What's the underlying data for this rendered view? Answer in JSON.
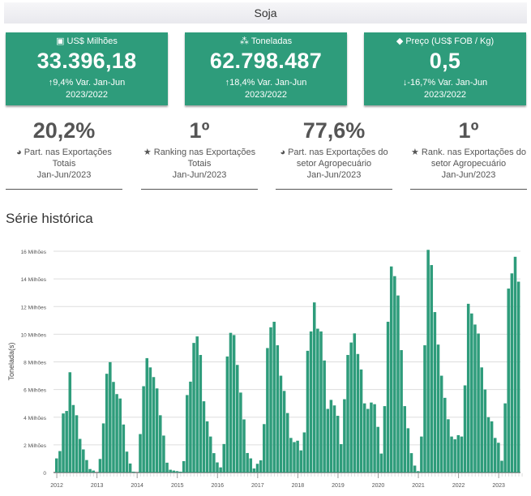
{
  "header": {
    "title": "Soja"
  },
  "cards": [
    {
      "icon": "money-bill-icon",
      "glyph": "▣",
      "label": "US$ Milhões",
      "value": "33.396,18",
      "arrow": "↑",
      "variation": "9,4% Var. Jan-Jun",
      "period": "2023/2022"
    },
    {
      "icon": "cubes-icon",
      "glyph": "⁂",
      "label": "Toneladas",
      "value": "62.798.487",
      "arrow": "↑",
      "variation": "18,4% Var. Jan-Jun",
      "period": "2023/2022"
    },
    {
      "icon": "tags-icon",
      "glyph": "◆",
      "label": "Preço (US$ FOB / Kg)",
      "value": "0,5",
      "arrow": "↓",
      "variation": "-16,7% Var. Jan-Jun",
      "period": "2023/2022"
    }
  ],
  "stats": [
    {
      "icon": "pie-chart-icon",
      "glyph": "◕",
      "value": "20,2%",
      "line1": "Part. nas Exportações",
      "line2": "Totais",
      "period": "Jan-Jun/2023"
    },
    {
      "icon": "star-icon",
      "glyph": "★",
      "value": "1º",
      "line1": "Ranking nas Exportações",
      "line2": "Totais",
      "period": "Jan-Jun/2023"
    },
    {
      "icon": "pie-chart-icon",
      "glyph": "◕",
      "value": "77,6%",
      "line1": "Part. nas Exportações do",
      "line2": "setor Agropecuário",
      "period": "Jan-Jun/2023"
    },
    {
      "icon": "star-icon",
      "glyph": "★",
      "value": "1º",
      "line1": "Rank. nas Exportações do",
      "line2": "setor Agropecuário",
      "period": "Jan-Jun/2023"
    }
  ],
  "section": {
    "title": "Série histórica"
  },
  "colors": {
    "bar": "#2e9c7b",
    "card": "#2e9c7b"
  },
  "chart_data": {
    "type": "bar",
    "title": "Série histórica",
    "xlabel": "",
    "ylabel": "Tonelada(s)",
    "ylim": [
      0,
      16
    ],
    "y_unit": "Milhões de toneladas",
    "yticks": [
      0,
      2,
      4,
      6,
      8,
      10,
      12,
      14,
      16
    ],
    "ytick_labels": [
      "0",
      "2 Milhões",
      "4 Milhões",
      "6 Milhões",
      "8 Milhões",
      "10 Milhões",
      "12 Milhões",
      "14 Milhões",
      "16 Milhões"
    ],
    "xtick_labels": [
      "2012",
      "2013",
      "2014",
      "2015",
      "2016",
      "2017",
      "2018",
      "2019",
      "2020",
      "2021",
      "2022",
      "2023"
    ],
    "grid": true,
    "start": "2012-01",
    "frequency": "monthly",
    "values": [
      1.02,
      1.55,
      4.27,
      4.45,
      7.25,
      4.88,
      4.14,
      2.43,
      1.67,
      0.9,
      0.25,
      0.14,
      0.0,
      0.98,
      3.55,
      7.14,
      7.98,
      6.55,
      5.67,
      5.35,
      3.47,
      1.51,
      0.65,
      0.06,
      0.0,
      2.78,
      6.24,
      8.27,
      7.6,
      6.9,
      6.08,
      4.14,
      2.67,
      0.71,
      0.2,
      0.14,
      0.1,
      0.06,
      0.82,
      5.6,
      6.57,
      9.37,
      9.84,
      8.5,
      5.15,
      3.7,
      2.6,
      1.4,
      0.73,
      0.37,
      2.06,
      8.39,
      10.1,
      9.94,
      7.78,
      5.78,
      3.84,
      1.41,
      1.02,
      0.29,
      0.63,
      0.88,
      3.5,
      9.0,
      10.5,
      10.9,
      9.2,
      7.0,
      5.9,
      4.3,
      2.5,
      2.2,
      2.3,
      1.6,
      2.9,
      8.8,
      10.2,
      12.3,
      10.4,
      10.2,
      8.1,
      4.6,
      5.25,
      4.85,
      4.1,
      2.05,
      5.3,
      8.5,
      9.4,
      10.06,
      8.57,
      7.45,
      5.0,
      4.6,
      5.06,
      4.94,
      3.3,
      1.37,
      4.8,
      10.9,
      14.9,
      14.2,
      12.8,
      8.85,
      4.8,
      3.2,
      1.4,
      0.5,
      0.1,
      2.6,
      9.2,
      16.1,
      15.0,
      11.6,
      9.25,
      7.0,
      5.4,
      3.85,
      2.6,
      2.4,
      2.7,
      2.6,
      6.3,
      12.2,
      11.5,
      10.7,
      10.05,
      7.6,
      6.0,
      4.0,
      3.7,
      2.5,
      2.15,
      0.85,
      5.0,
      13.3,
      14.4,
      15.6,
      13.8
    ]
  }
}
